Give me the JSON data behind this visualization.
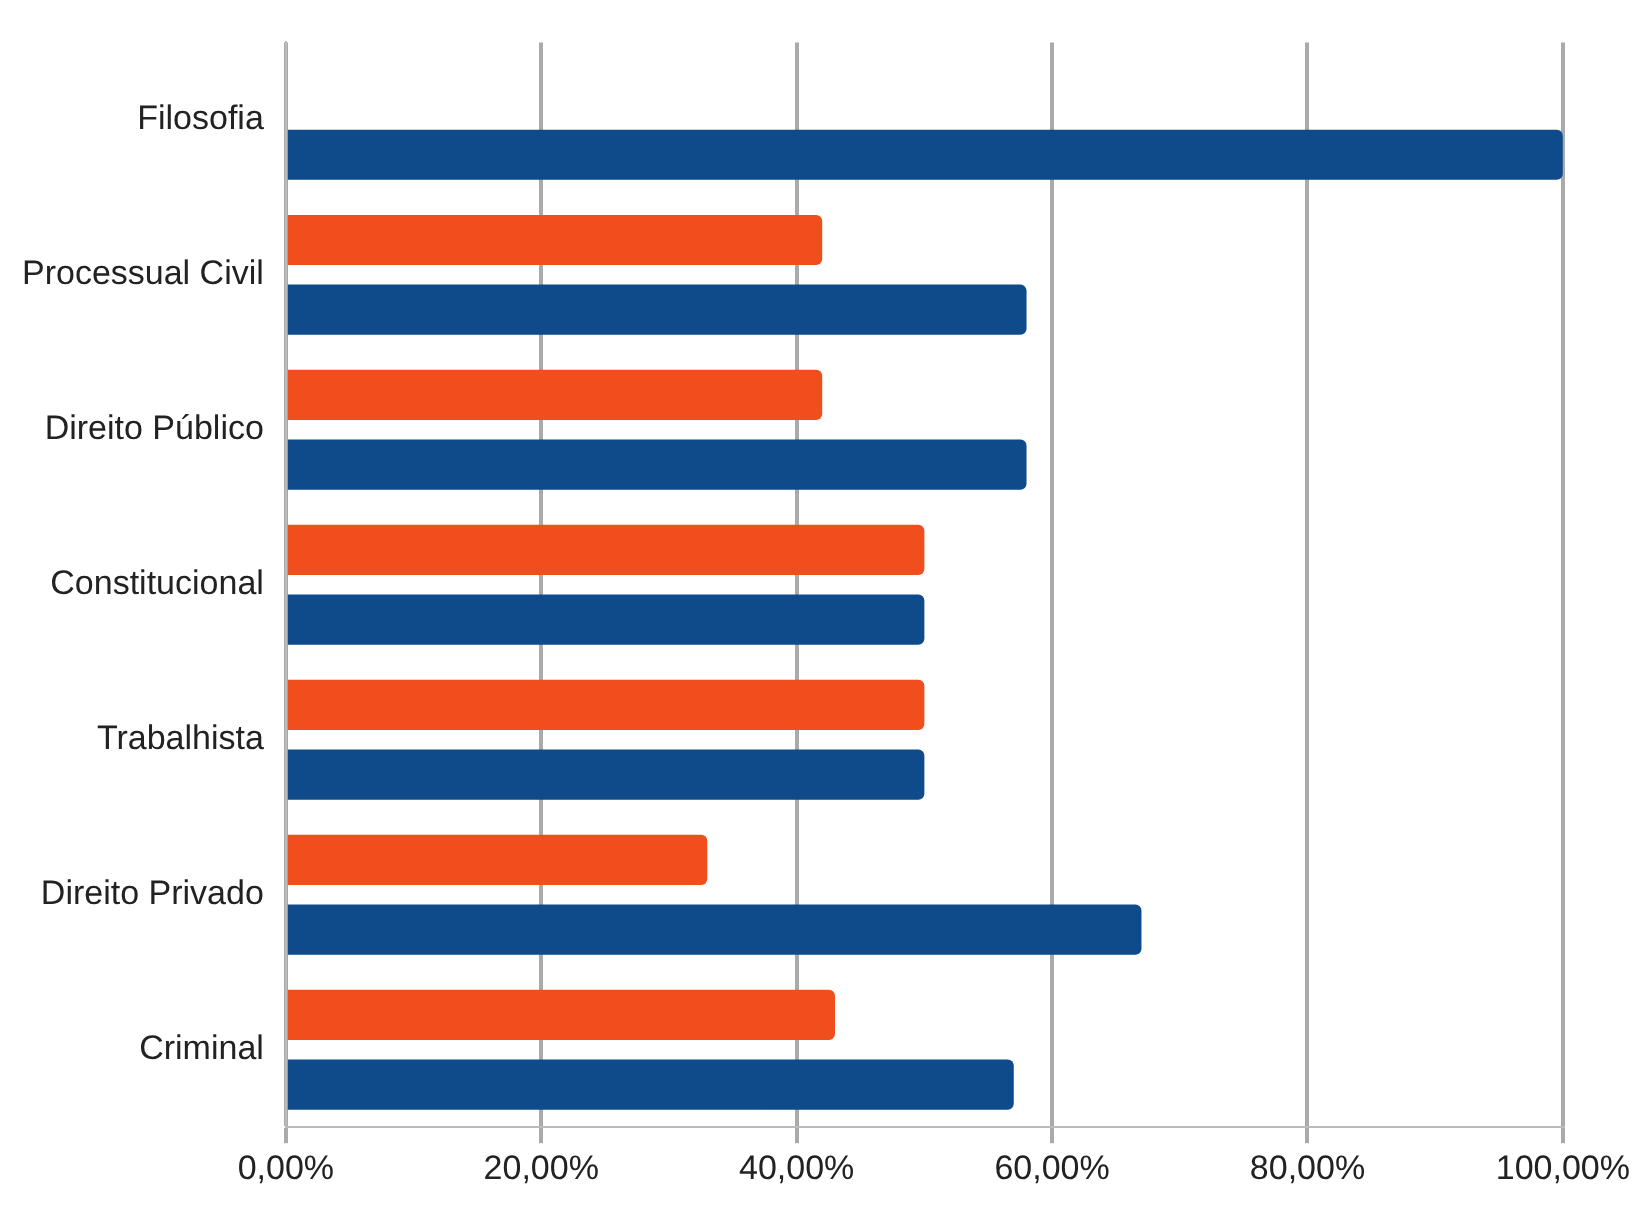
{
  "chart_data": {
    "type": "bar",
    "orientation": "horizontal",
    "categories": [
      "Filosofia",
      "Processual Civil",
      "Direito Público",
      "Constitucional",
      "Trabalhista",
      "Direito Privado",
      "Criminal"
    ],
    "series": [
      {
        "color": "#f04e1c",
        "values": [
          0,
          42,
          42,
          50,
          50,
          33,
          43
        ]
      },
      {
        "color": "#0f4a8a",
        "values": [
          100,
          58,
          58,
          50,
          50,
          67,
          57
        ]
      }
    ],
    "xlim": [
      0,
      100
    ],
    "xticks": [
      {
        "value": 0,
        "label": "0,00%"
      },
      {
        "value": 20,
        "label": "20,00%"
      },
      {
        "value": 40,
        "label": "40,00%"
      },
      {
        "value": 60,
        "label": "60,00%"
      },
      {
        "value": 80,
        "label": "80,00%"
      },
      {
        "value": 100,
        "label": "100,00%"
      }
    ],
    "grid": "x",
    "legend": false
  }
}
